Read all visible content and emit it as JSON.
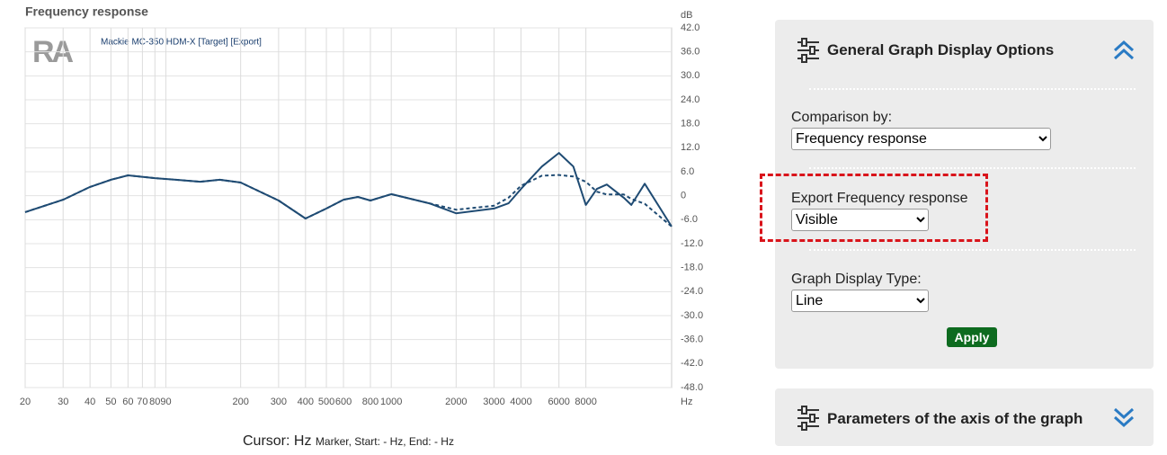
{
  "chart_data": {
    "type": "line",
    "title": "Frequency response",
    "logo": "RA",
    "legend": "Mackie MC-350 HDM-X [Target] [Export]",
    "x_unit": "Hz",
    "y_unit": "dB",
    "xscale": "log",
    "grid": true,
    "x": [
      20,
      30,
      40,
      50,
      60,
      80,
      100,
      130,
      160,
      200,
      300,
      400,
      500,
      600,
      700,
      800,
      1000,
      1500,
      2000,
      3000,
      3500,
      4000,
      5000,
      6000,
      7000,
      8000,
      9000,
      10000,
      12000,
      13000,
      15000,
      20000
    ],
    "series": [
      {
        "color": "#1f4b73",
        "dashed": false,
        "values": [
          -4.1,
          -1.0,
          2.2,
          4.0,
          5.1,
          4.4,
          4.0,
          3.5,
          4.0,
          3.3,
          -1.2,
          -5.7,
          -3.2,
          -1.0,
          -0.3,
          -1.2,
          0.4,
          -1.9,
          -4.4,
          -3.2,
          -1.9,
          1.7,
          7.3,
          10.7,
          7.3,
          -2.3,
          1.7,
          2.8,
          -0.5,
          -2.3,
          3.0,
          -7.7
        ]
      },
      {
        "color": "#1f4b73",
        "dashed": true,
        "values": [
          -4.1,
          -1.0,
          2.2,
          4.0,
          5.1,
          4.4,
          4.0,
          3.5,
          4.0,
          3.3,
          -1.2,
          -5.7,
          -3.2,
          -1.0,
          -0.3,
          -1.2,
          0.4,
          -1.9,
          -3.5,
          -2.5,
          -0.5,
          2.5,
          5.0,
          5.2,
          4.8,
          3.5,
          1.0,
          0.3,
          0.3,
          -0.8,
          -2.0,
          -7.7
        ]
      }
    ],
    "xlim": [
      20,
      20000
    ],
    "xticks": [
      20,
      30,
      40,
      50,
      60,
      70,
      80,
      90,
      200,
      300,
      400,
      500,
      600,
      800,
      1000,
      2000,
      3000,
      4000,
      6000,
      8000
    ],
    "ylim": [
      -48,
      42
    ],
    "yticks": [
      {
        "value": 42,
        "label": "42.0"
      },
      {
        "value": 36,
        "label": "36.0"
      },
      {
        "value": 30,
        "label": "30.0"
      },
      {
        "value": 24,
        "label": "24.0"
      },
      {
        "value": 18,
        "label": "18.0"
      },
      {
        "value": 12,
        "label": "12.0"
      },
      {
        "value": 6,
        "label": "6.0"
      },
      {
        "value": 0,
        "label": "0"
      },
      {
        "value": -6,
        "label": "-6.0"
      },
      {
        "value": -12,
        "label": "-12.0"
      },
      {
        "value": -18,
        "label": "-18.0"
      },
      {
        "value": -24,
        "label": "-24.0"
      },
      {
        "value": -30,
        "label": "-30.0"
      },
      {
        "value": -36,
        "label": "-36.0"
      },
      {
        "value": -42,
        "label": "-42.0"
      },
      {
        "value": -48,
        "label": "-48.0"
      }
    ]
  },
  "cursor": {
    "main": "Cursor: Hz",
    "detail": "Marker, Start: - Hz, End: - Hz"
  },
  "panels": [
    {
      "title": "General Graph Display Options",
      "fields": [
        {
          "label": "Comparison by:",
          "value": "Frequency response"
        },
        {
          "label": "Export Frequency response",
          "value": "Visible"
        },
        {
          "label": "Graph Display Type:",
          "value": "Line"
        }
      ],
      "button": "Apply"
    },
    {
      "title": "Parameters of the axis of the graph"
    }
  ]
}
